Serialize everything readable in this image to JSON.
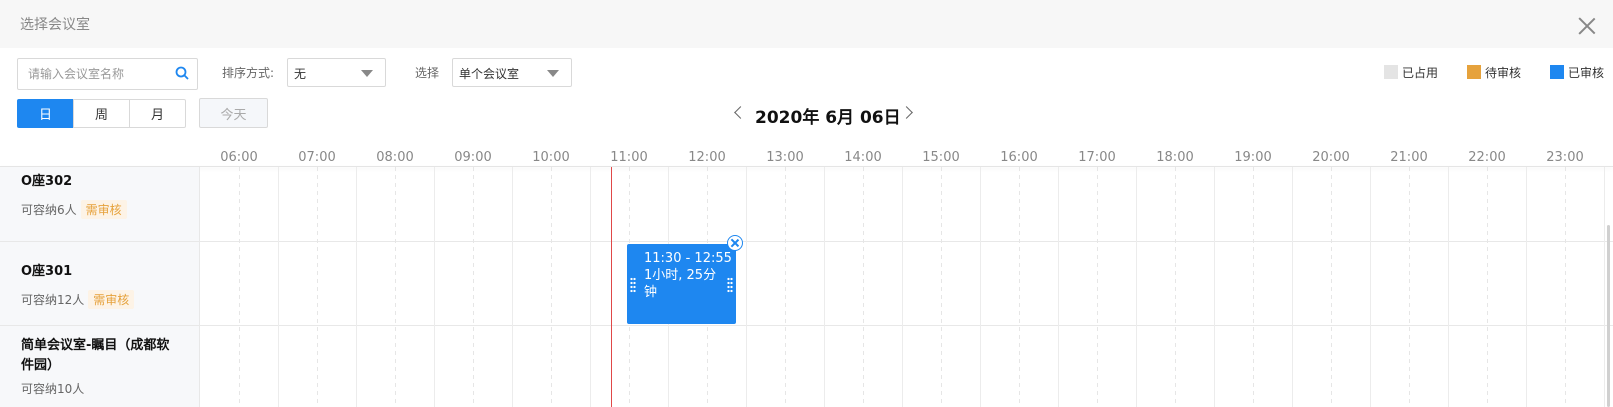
{
  "dialog": {
    "title": "选择会议室"
  },
  "filters": {
    "search_placeholder": "请输入会议室名称",
    "sort_label": "排序方式:",
    "sort_value": "无",
    "select_label": "选择",
    "select_value": "单个会议室"
  },
  "legend": [
    {
      "label": "已占用",
      "color": "#e4e4e4"
    },
    {
      "label": "待审核",
      "color": "#e6a23c"
    },
    {
      "label": "已审核",
      "color": "#1e87f0"
    }
  ],
  "view_modes": [
    "日",
    "周",
    "月"
  ],
  "active_view": "日",
  "today_label": "今天",
  "date_label": "2020年 6月 06日",
  "hours": [
    "06:00",
    "07:00",
    "08:00",
    "09:00",
    "10:00",
    "11:00",
    "12:00",
    "13:00",
    "14:00",
    "15:00",
    "16:00",
    "17:00",
    "18:00",
    "19:00",
    "20:00",
    "21:00",
    "22:00",
    "23:00"
  ],
  "rooms": [
    {
      "name": "O座302",
      "capacity": "可容纳6人",
      "badge": "需审核"
    },
    {
      "name": "O座301",
      "capacity": "可容纳12人",
      "badge": "需审核"
    },
    {
      "name": "简单会议室-瞩目（成都软件园）",
      "capacity": "可容纳10人",
      "badge": ""
    }
  ],
  "booking": {
    "time_range": "11:30 - 12:55",
    "duration": "1小时, 25分钟",
    "room": "O座301"
  },
  "colors": {
    "accent": "#1e87f0",
    "current_time_line": "#e04848",
    "badge_text": "#e6a23c"
  }
}
